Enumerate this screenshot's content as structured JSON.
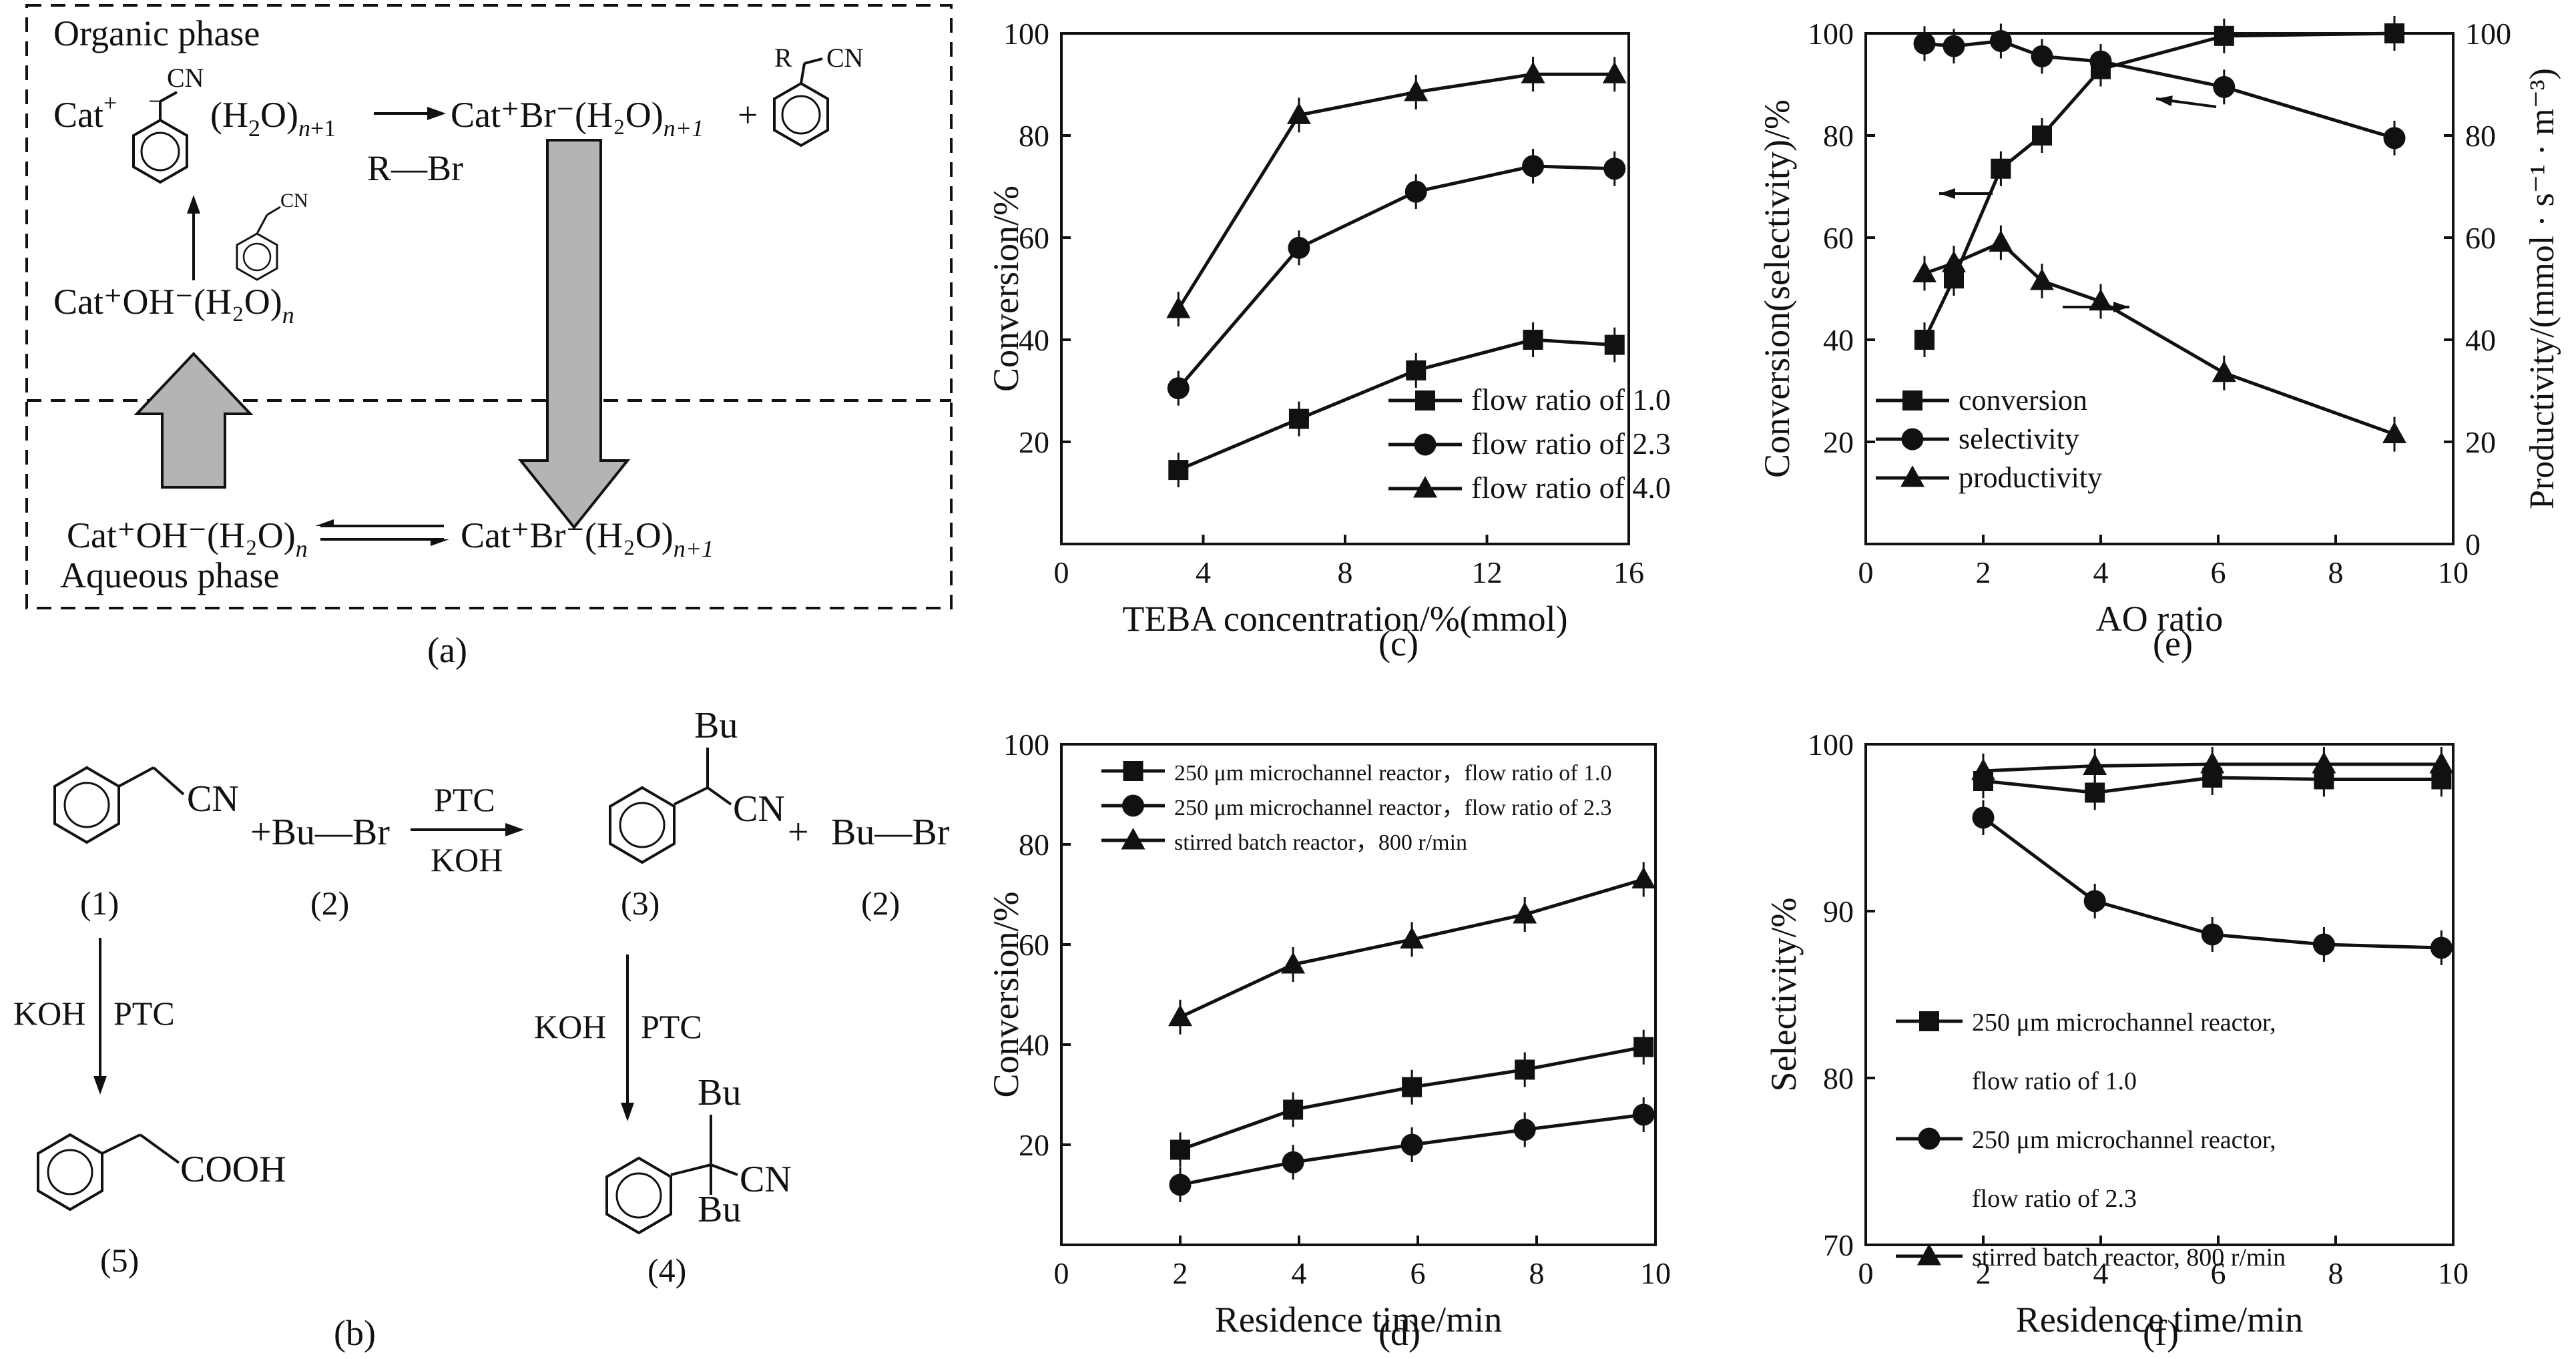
{
  "panel_labels": {
    "a": "(a)",
    "b": "(b)",
    "c": "(c)",
    "d": "(d)",
    "e": "(e)",
    "f": "(f)"
  },
  "scheme_a": {
    "organic_phase": "Organic phase",
    "aqueous_phase": "Aqueous phase",
    "cat_plus": "Cat",
    "cn": "CN",
    "h2o_n1": "(H2O)n+1",
    "cat_br": "Cat⁺Br⁻(H₂O)",
    "n_plus_1": "n+1",
    "r_br": "R—Br",
    "cat_oh": "Cat⁺OH⁻(H₂O)",
    "n": "n",
    "plus": "+",
    "r": "R"
  },
  "scheme_b": {
    "cn": "CN",
    "plus_bu_br": "+Bu—Br",
    "ptc": "PTC",
    "koh": "KOH",
    "bu": "Bu",
    "plus": "+",
    "bu_br": "Bu—Br",
    "cooh": "COOH",
    "n1": "(1)",
    "n2": "(2)",
    "n3": "(3)",
    "n2b": "(2)",
    "n4": "(4)",
    "n5": "(5)"
  },
  "chart_data": [
    {
      "panel": "c",
      "type": "line",
      "xlabel": "TEBA concentration/%(mmol)",
      "ylabel": "Conversion/%",
      "xlim": [
        0,
        16
      ],
      "ylim": [
        0,
        100
      ],
      "xticks": [
        0,
        4,
        8,
        12,
        16
      ],
      "yticks": [
        20,
        40,
        60,
        80,
        100
      ],
      "legend_position": "bottom-right",
      "series": [
        {
          "name": "flow ratio of 1.0",
          "marker": "square",
          "x": [
            3.3,
            6.7,
            10.0,
            13.3,
            15.6
          ],
          "y": [
            14.5,
            24.5,
            34,
            40,
            39
          ]
        },
        {
          "name": "flow ratio of 2.3",
          "marker": "circle",
          "x": [
            3.3,
            6.7,
            10.0,
            13.3,
            15.6
          ],
          "y": [
            30.5,
            58,
            69,
            74,
            73.5
          ]
        },
        {
          "name": "flow ratio of 4.0",
          "marker": "triangle",
          "x": [
            3.3,
            6.7,
            10.0,
            13.3,
            15.6
          ],
          "y": [
            46,
            84,
            88.5,
            92,
            92
          ]
        }
      ]
    },
    {
      "panel": "e",
      "type": "line",
      "xlabel": "AO ratio",
      "ylabel": "Conversion(selectivity)/%",
      "ylabel_right": "Productivity/(mmol · s⁻¹ · m⁻³)",
      "xlim": [
        0,
        10
      ],
      "ylim": [
        0,
        100
      ],
      "ylim_right": [
        0,
        100
      ],
      "xticks": [
        0,
        2,
        4,
        6,
        8,
        10
      ],
      "yticks": [
        20,
        40,
        60,
        80,
        100
      ],
      "yticks_right": [
        0,
        20,
        40,
        60,
        80,
        100
      ],
      "legend_position": "bottom-left",
      "series": [
        {
          "name": "conversion",
          "marker": "square",
          "axis": "left",
          "x": [
            1.0,
            1.5,
            2.3,
            3.0,
            4.0,
            6.1,
            9.0
          ],
          "y": [
            40,
            52,
            73.5,
            80,
            93,
            99.5,
            100
          ]
        },
        {
          "name": "selectivity",
          "marker": "circle",
          "axis": "left",
          "x": [
            1.0,
            1.5,
            2.3,
            3.0,
            4.0,
            6.1,
            9.0
          ],
          "y": [
            98,
            97.5,
            98.5,
            95.5,
            94.5,
            89.5,
            79.5
          ]
        },
        {
          "name": "productivity",
          "marker": "triangle",
          "axis": "right",
          "x": [
            1.0,
            1.5,
            2.3,
            3.0,
            4.0,
            6.1,
            9.0
          ],
          "y": [
            53,
            55,
            59,
            51.5,
            47.5,
            33.5,
            21.5
          ]
        }
      ]
    },
    {
      "panel": "d",
      "type": "line",
      "xlabel": "Residence time/min",
      "ylabel": "Conversion/%",
      "xlim": [
        0,
        10
      ],
      "ylim": [
        0,
        100
      ],
      "xticks": [
        0,
        2,
        4,
        6,
        8,
        10
      ],
      "yticks": [
        20,
        40,
        60,
        80,
        100
      ],
      "legend_position": "top-left",
      "series": [
        {
          "name": "250 μm microchannel reactor，flow ratio of 1.0",
          "marker": "square",
          "x": [
            2,
            3.9,
            5.9,
            7.8,
            9.8
          ],
          "y": [
            19,
            27,
            31.5,
            35,
            39.5
          ]
        },
        {
          "name": "250 μm microchannel reactor，flow ratio of 2.3",
          "marker": "circle",
          "x": [
            2,
            3.9,
            5.9,
            7.8,
            9.8
          ],
          "y": [
            12,
            16.5,
            20,
            23,
            26
          ]
        },
        {
          "name": "stirred batch reactor，800 r/min",
          "marker": "triangle",
          "x": [
            2,
            3.9,
            5.9,
            7.8,
            9.8
          ],
          "y": [
            45.5,
            56,
            61,
            66,
            73
          ]
        }
      ]
    },
    {
      "panel": "f",
      "type": "line",
      "xlabel": "Residence time/min",
      "ylabel": "Selectivity/%",
      "xlim": [
        0,
        10
      ],
      "ylim": [
        70,
        100
      ],
      "xticks": [
        0,
        2,
        4,
        6,
        8,
        10
      ],
      "yticks": [
        70,
        80,
        90,
        100
      ],
      "legend_position": "bottom-left",
      "series": [
        {
          "name": "250 μm microchannel reactor,",
          "name_line2": "flow ratio of 1.0",
          "marker": "square",
          "x": [
            2,
            3.9,
            5.9,
            7.8,
            9.8
          ],
          "y": [
            97.8,
            97.1,
            98.0,
            97.9,
            97.9
          ]
        },
        {
          "name": "250 μm microchannel reactor,",
          "name_line2": "flow ratio of 2.3",
          "marker": "circle",
          "x": [
            2,
            3.9,
            5.9,
            7.8,
            9.8
          ],
          "y": [
            95.6,
            90.6,
            88.6,
            88.0,
            87.8
          ]
        },
        {
          "name": "stirred batch reactor, 800 r/min",
          "marker": "triangle",
          "x": [
            2,
            3.9,
            5.9,
            7.8,
            9.8
          ],
          "y": [
            98.4,
            98.7,
            98.8,
            98.8,
            98.8
          ]
        }
      ]
    }
  ]
}
